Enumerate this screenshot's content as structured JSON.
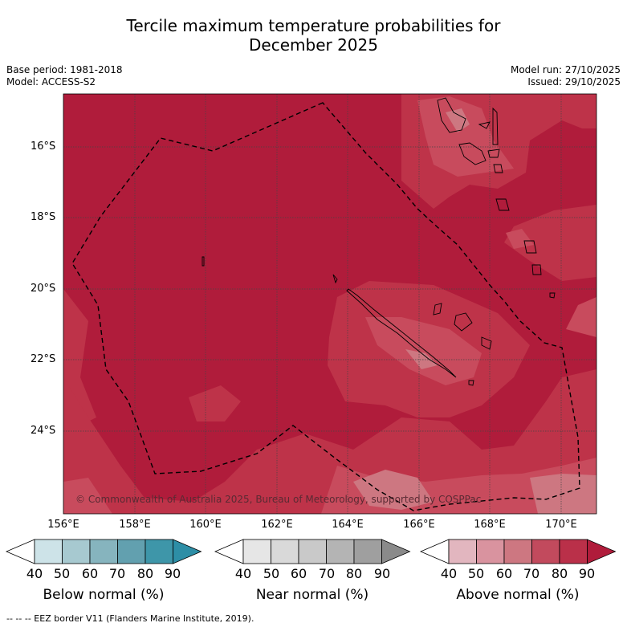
{
  "title_line1": "Tercile maximum temperature probabilities for",
  "title_line2": "December 2025",
  "meta": {
    "base_period": "Base period: 1981-2018",
    "model": "Model: ACCESS-S2",
    "model_run": "Model run: 27/10/2025",
    "issued": "Issued: 29/10/2025"
  },
  "copyright": "© Commonwealth of Australia 2025, Bureau of Meteorology, supported by COSPPac",
  "axes": {
    "lat_labels": [
      "16°S",
      "18°S",
      "20°S",
      "22°S",
      "24°S"
    ],
    "lon_labels": [
      "156°E",
      "158°E",
      "160°E",
      "162°E",
      "164°E",
      "166°E",
      "168°E",
      "170°E"
    ]
  },
  "colorbars": [
    {
      "label": "Below normal (%)",
      "ticks": [
        "40",
        "50",
        "60",
        "70",
        "80",
        "90"
      ],
      "colors": [
        "#ffffff",
        "#cde3e8",
        "#a7c9d0",
        "#86b4be",
        "#62a0af",
        "#3e96a9",
        "#2d8ea6"
      ]
    },
    {
      "label": "Near normal (%)",
      "ticks": [
        "40",
        "50",
        "60",
        "70",
        "80",
        "90"
      ],
      "colors": [
        "#ffffff",
        "#e6e6e6",
        "#d9d9d9",
        "#c9c9c9",
        "#b4b4b4",
        "#9f9f9f",
        "#8a8a8a"
      ]
    },
    {
      "label": "Above normal (%)",
      "ticks": [
        "40",
        "50",
        "60",
        "70",
        "80",
        "90"
      ],
      "colors": [
        "#ffffff",
        "#e2b6bf",
        "#d9939f",
        "#cd7781",
        "#c24a5d",
        "#ba3049",
        "#b01c3b"
      ]
    }
  ],
  "eez_legend": "--  --  -- EEZ border V11 (Flanders Marine Institute, 2019).",
  "palette": {
    "c90": "#b01c3b",
    "c80": "#be3349",
    "c70": "#c84b5d",
    "c60": "#cd7781",
    "coast": "#000000",
    "grid": "#444444"
  }
}
